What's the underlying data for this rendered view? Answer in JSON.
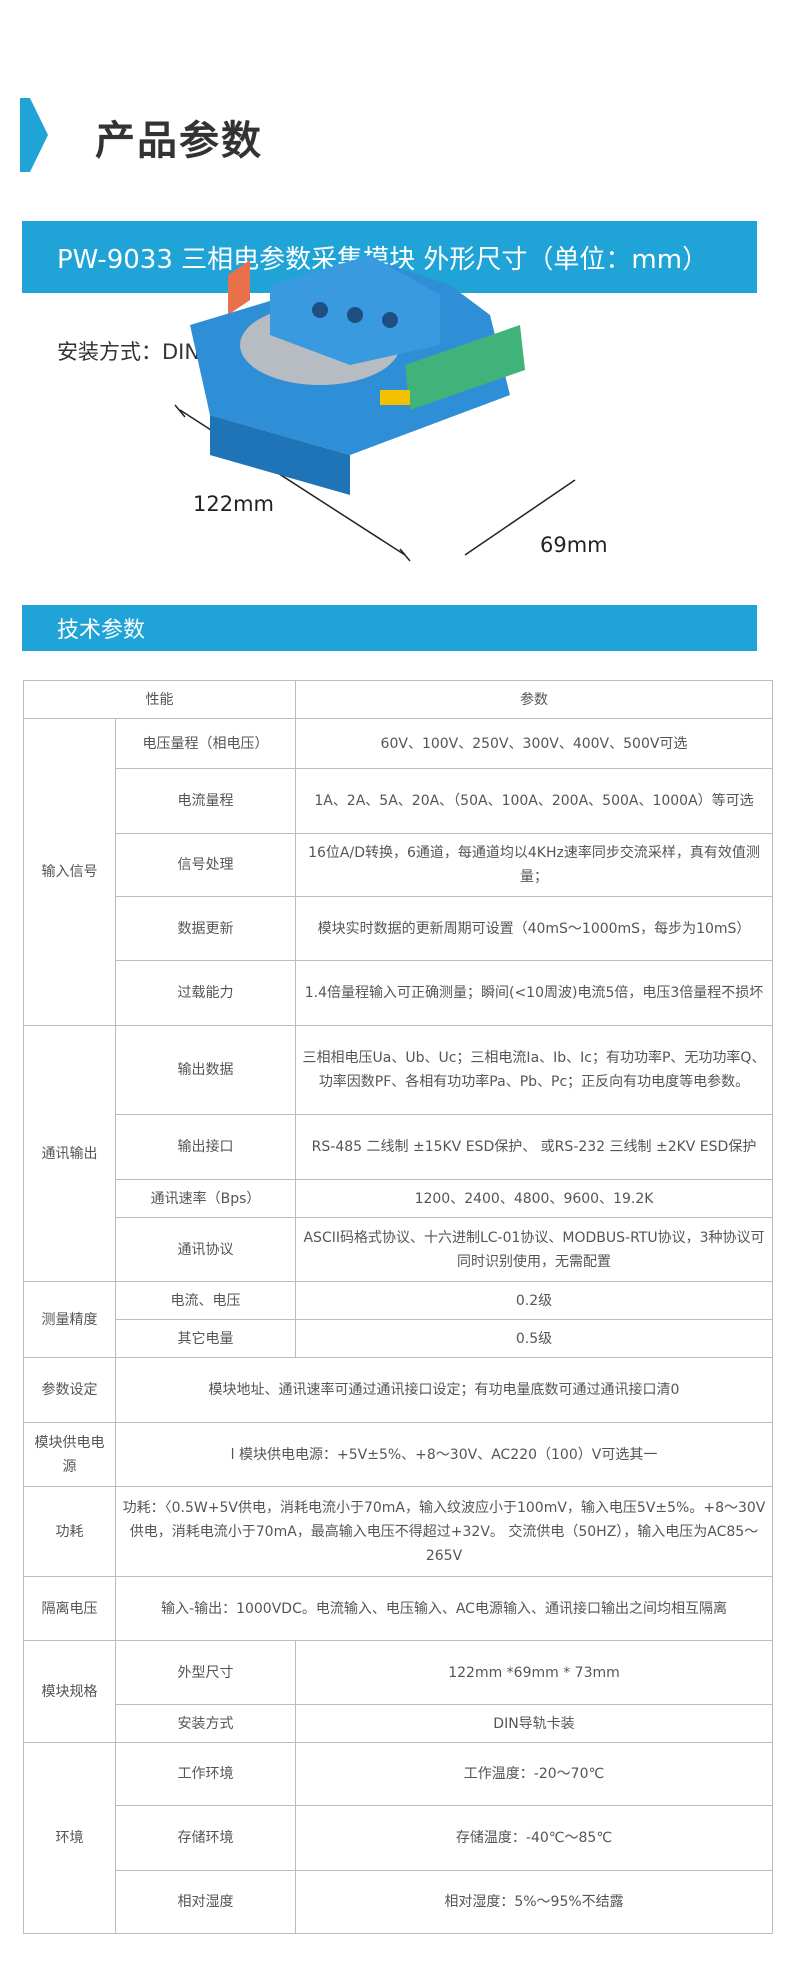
{
  "header": {
    "title": "产品参数",
    "accent": "#20a4d8"
  },
  "banner1": "PW-9033 三相电参数采集模块 外形尺寸（单位：mm）",
  "install": "安装方式：DIN导轨卡装",
  "dims": {
    "length": "122mm",
    "width": "69mm"
  },
  "banner2": "技术参数",
  "table": {
    "head": [
      "性能",
      "参数"
    ],
    "input": {
      "group": "输入信号",
      "rows": [
        [
          "电压量程（相电压）",
          "60V、100V、250V、300V、400V、500V可选"
        ],
        [
          "电流量程",
          "1A、2A、5A、20A、（50A、100A、200A、500A、1000A）等可选"
        ],
        [
          "信号处理",
          "16位A/D转换，6通道，每通道均以4KHz速率同步交流采样，真有效值测量；"
        ],
        [
          "数据更新",
          "模块实时数据的更新周期可设置（40mS～1000mS，每步为10mS）"
        ],
        [
          "过载能力",
          "1.4倍量程输入可正确测量；瞬间(<10周波)电流5倍，电压3倍量程不损坏"
        ]
      ]
    },
    "comm": {
      "group": "通讯输出",
      "rows": [
        [
          "输出数据",
          "三相相电压Ua、Ub、Uc；三相电流Ia、Ib、Ic；有功功率P、无功功率Q、功率因数PF、各相有功功率Pa、Pb、Pc；正反向有功电度等电参数。"
        ],
        [
          "输出接口",
          "RS-485 二线制 ±15KV ESD保护、 或RS-232 三线制 ±2KV ESD保护"
        ],
        [
          "通讯速率（Bps）",
          "1200、2400、4800、9600、19.2K"
        ],
        [
          "通讯协议",
          "ASCII码格式协议、十六进制LC-01协议、MODBUS-RTU协议，3种协议可同时识别使用，无需配置"
        ]
      ]
    },
    "accuracy": {
      "group": "测量精度",
      "rows": [
        [
          "电流、电压",
          "0.2级"
        ],
        [
          "其它电量",
          "0.5级"
        ]
      ]
    },
    "single": [
      [
        "参数设定",
        "模块地址、通讯速率可通过通讯接口设定；有功电量底数可通过通讯接口清0"
      ],
      [
        "模块供电电源",
        "l 模块供电电源：+5V±5%、+8～30V、AC220（100）V可选其一"
      ],
      [
        "功耗",
        "功耗：〈0.5W+5V供电，消耗电流小于70mA，输入纹波应小于100mV，输入电压5V±5%。+8～30V供电，消耗电流小于70mA，最高输入电压不得超过+32V。 交流供电（50HZ），输入电压为AC85～265V"
      ],
      [
        "隔离电压",
        "输入-输出：1000VDC。电流输入、电压输入、AC电源输入、通讯接口输出之间均相互隔离"
      ]
    ],
    "spec": {
      "group": "模块规格",
      "rows": [
        [
          "外型尺寸",
          "122mm *69mm * 73mm"
        ],
        [
          "安装方式",
          "DIN导轨卡装"
        ]
      ]
    },
    "env": {
      "group": "环境",
      "rows": [
        [
          "工作环境",
          "工作温度：-20～70℃"
        ],
        [
          "存储环境",
          "存储温度：-40℃～85℃"
        ],
        [
          "相对湿度",
          "相对湿度：5%～95%不结露"
        ]
      ]
    }
  }
}
